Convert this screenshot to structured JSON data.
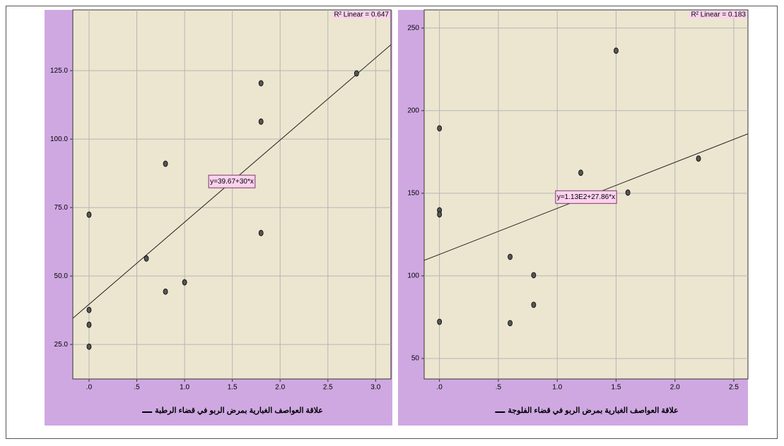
{
  "chart_data": [
    {
      "type": "scatter",
      "x": [
        0,
        0,
        0,
        0,
        0.6,
        0.8,
        0.8,
        1.0,
        1.8,
        1.8,
        1.8,
        2.8
      ],
      "values": [
        72.4,
        37.6,
        32.2,
        24.2,
        56.4,
        91,
        44.3,
        47.7,
        120.4,
        106.4,
        65.7,
        124
      ],
      "color": "#555555",
      "xlim": [
        -0.17,
        3.16
      ],
      "ylim": [
        12.4,
        147.2
      ],
      "xticks": [
        {
          "value": 0,
          "label": ".0"
        },
        {
          "value": 0.5,
          "label": ".5"
        },
        {
          "value": 1,
          "label": "1.0"
        },
        1.5,
        {
          "value": 2,
          "label": "2.0"
        },
        2.5,
        {
          "value": 3,
          "label": "3.0"
        }
      ],
      "yticks": [
        {
          "value": 25,
          "label": "25.0"
        },
        {
          "value": 50,
          "label": "50.0"
        },
        {
          "value": 75,
          "label": "75.0"
        },
        {
          "value": 100,
          "label": "100.0"
        },
        {
          "value": 125,
          "label": "125.0"
        }
      ],
      "grid": true,
      "x_label": "علاقة العواصف الغبارية بمرض الربو في قضاء الرطبة",
      "fit": {
        "intercept": 39.67,
        "slope": 30,
        "label": "y=39.67+30*x"
      },
      "r2_label": "R² Linear = 0.647"
    },
    {
      "type": "scatter",
      "x": [
        0,
        0,
        0,
        0,
        0.6,
        0.6,
        0.8,
        0.8,
        1.2,
        1.5,
        1.6,
        2.2
      ],
      "values": [
        189.3,
        139.7,
        137.2,
        72.2,
        111.5,
        71.4,
        100.4,
        82.5,
        162.4,
        236.3,
        150.4,
        171
      ],
      "color": "#555555",
      "xlim": [
        -0.13,
        2.62
      ],
      "ylim": [
        37.6,
        261
      ],
      "xticks": [
        {
          "value": 0,
          "label": ".0"
        },
        {
          "value": 0.5,
          "label": ".5"
        },
        {
          "value": 1,
          "label": "1.0"
        },
        1.5,
        {
          "value": 2,
          "label": "2.0"
        },
        2.5
      ],
      "yticks": [
        50,
        100,
        150,
        200,
        250
      ],
      "grid": true,
      "x_label": "علاقة العواصف الغبارية بمرض الربو في قضاء الفلوجة",
      "fit": {
        "intercept": 113,
        "slope": 27.86,
        "label": "y=1.13E2+27.86*x"
      },
      "r2_label": "R² Linear = 0.183"
    }
  ]
}
